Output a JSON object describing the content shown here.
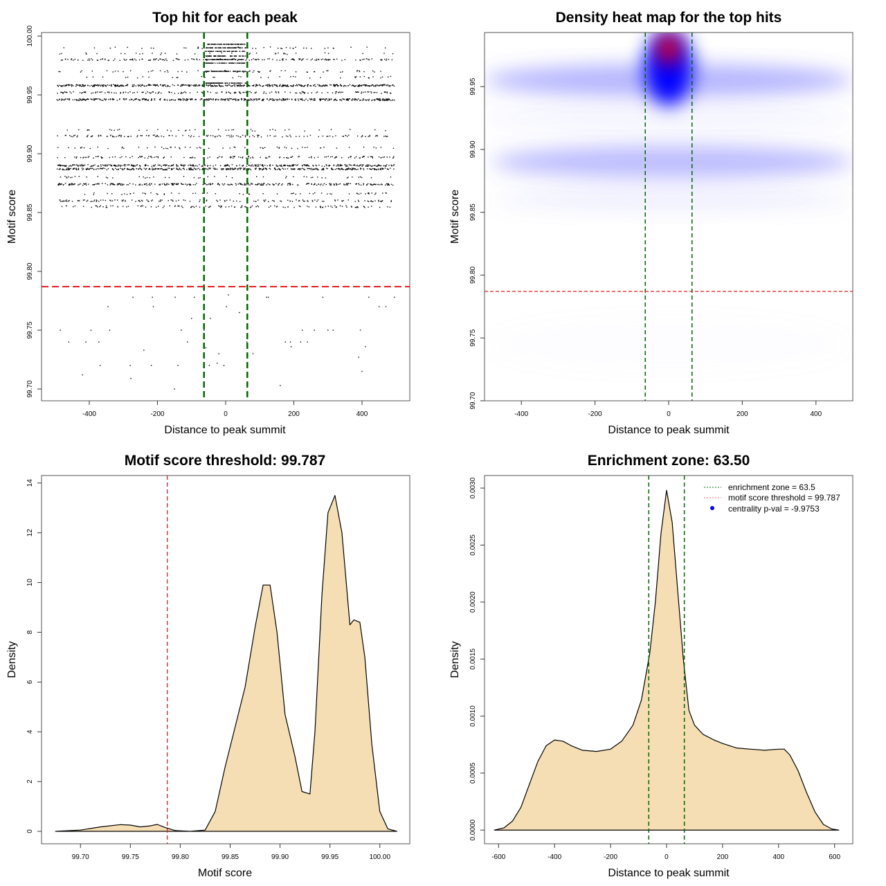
{
  "chart_data": [
    {
      "type": "scatter",
      "title": "Top hit for each peak",
      "xlabel": "Distance to peak summit",
      "ylabel": "Motif score",
      "xlim": [
        -540,
        540
      ],
      "ylim": [
        99.69,
        100.003
      ],
      "xticks": [
        -400,
        -200,
        0,
        200,
        400
      ],
      "yticks": [
        99.7,
        99.75,
        99.8,
        99.85,
        99.9,
        99.95,
        100.0
      ],
      "ytick_labels": [
        "99.70",
        "99.75",
        "99.80",
        "99.85",
        "99.90",
        "99.95",
        "100.00"
      ],
      "threshold_score": 99.787,
      "enrichment_zone": [
        -63.5,
        63.5
      ],
      "score_bands": [
        {
          "score": 99.99,
          "count": 40
        },
        {
          "score": 99.985,
          "count": 35
        },
        {
          "score": 99.98,
          "count": 160
        },
        {
          "score": 99.97,
          "count": 60
        },
        {
          "score": 99.965,
          "count": 40
        },
        {
          "score": 99.958,
          "count": 500
        },
        {
          "score": 99.952,
          "count": 170
        },
        {
          "score": 99.946,
          "count": 420
        },
        {
          "score": 99.92,
          "count": 40
        },
        {
          "score": 99.915,
          "count": 140
        },
        {
          "score": 99.905,
          "count": 60
        },
        {
          "score": 99.897,
          "count": 140
        },
        {
          "score": 99.89,
          "count": 330
        },
        {
          "score": 99.887,
          "count": 380
        },
        {
          "score": 99.88,
          "count": 50
        },
        {
          "score": 99.874,
          "count": 300
        },
        {
          "score": 99.866,
          "count": 60
        },
        {
          "score": 99.86,
          "count": 140
        },
        {
          "score": 99.855,
          "count": 120
        }
      ],
      "central_cluster": {
        "x_range": [
          -60,
          60
        ],
        "scores": [
          99.993,
          99.99,
          99.987,
          99.983,
          99.98,
          99.977,
          99.97,
          99.96
        ],
        "count_per_score": 60
      },
      "low_points": [
        [
          -485,
          99.75
        ],
        [
          -460,
          99.74
        ],
        [
          -420,
          99.712
        ],
        [
          -410,
          99.74
        ],
        [
          -395,
          99.75
        ],
        [
          -372,
          99.74
        ],
        [
          -368,
          99.72
        ],
        [
          -345,
          99.77
        ],
        [
          -340,
          99.75
        ],
        [
          -280,
          99.72
        ],
        [
          -278,
          99.709
        ],
        [
          -272,
          99.778
        ],
        [
          -240,
          99.733
        ],
        [
          -215,
          99.778
        ],
        [
          -218,
          99.72
        ],
        [
          -212,
          99.77
        ],
        [
          -150,
          99.7
        ],
        [
          -148,
          99.778
        ],
        [
          -140,
          99.72
        ],
        [
          -130,
          99.75
        ],
        [
          -112,
          99.74
        ],
        [
          -100,
          99.76
        ],
        [
          -92,
          99.778
        ],
        [
          -63,
          99.75
        ],
        [
          -58,
          99.735
        ],
        [
          -48,
          99.72
        ],
        [
          -45,
          99.76
        ],
        [
          -25,
          99.722
        ],
        [
          -20,
          99.73
        ],
        [
          -5,
          99.72
        ],
        [
          2,
          99.77
        ],
        [
          8,
          99.78
        ],
        [
          40,
          99.765
        ],
        [
          62,
          99.74
        ],
        [
          80,
          99.73
        ],
        [
          120,
          99.778
        ],
        [
          125,
          99.778
        ],
        [
          160,
          99.703
        ],
        [
          175,
          99.74
        ],
        [
          190,
          99.74
        ],
        [
          192,
          99.736
        ],
        [
          220,
          99.74
        ],
        [
          225,
          99.75
        ],
        [
          240,
          99.74
        ],
        [
          260,
          99.75
        ],
        [
          285,
          99.778
        ],
        [
          300,
          99.75
        ],
        [
          315,
          99.75
        ],
        [
          390,
          99.727
        ],
        [
          395,
          99.75
        ],
        [
          400,
          99.715
        ],
        [
          410,
          99.736
        ],
        [
          420,
          99.778
        ],
        [
          450,
          99.77
        ],
        [
          470,
          99.77
        ],
        [
          495,
          99.778
        ]
      ]
    },
    {
      "type": "heatmap",
      "title": "Density heat map for the top hits",
      "xlabel": "Distance to peak summit",
      "ylabel": "Motif score",
      "xlim": [
        -500,
        500
      ],
      "ylim": [
        99.7,
        99.993
      ],
      "xticks": [
        -400,
        -200,
        0,
        200,
        400
      ],
      "yticks": [
        99.7,
        99.75,
        99.8,
        99.85,
        99.9,
        99.95
      ],
      "ytick_labels": [
        "99.70",
        "99.75",
        "99.80",
        "99.85",
        "99.90",
        "99.95"
      ],
      "threshold_score": 99.787,
      "enrichment_zone": [
        -63.5,
        63.5
      ],
      "colors": [
        "#ffffff",
        "#0000ff",
        "#ff0000"
      ],
      "density_hotspots": [
        {
          "x": [
            -500,
            500
          ],
          "score": 99.955,
          "spread": 0.013,
          "intensity": 0.45,
          "color": "#5a5aff"
        },
        {
          "x": [
            -480,
            500
          ],
          "score": 99.89,
          "spread": 0.013,
          "intensity": 0.4,
          "color": "#5a5aff"
        },
        {
          "x": [
            -470,
            500
          ],
          "score": 99.86,
          "spread": 0.01,
          "intensity": 0.12,
          "color": "#8080ff"
        },
        {
          "x": [
            -500,
            500
          ],
          "score": 99.925,
          "spread": 0.012,
          "intensity": 0.08,
          "color": "#8080ff"
        },
        {
          "x": [
            -65,
            65
          ],
          "score": 99.965,
          "spread": 0.03,
          "intensity": 1.0,
          "color": "#0000ff"
        },
        {
          "x": [
            -28,
            28
          ],
          "score": 99.98,
          "spread": 0.012,
          "intensity": 1.0,
          "color": "#ff0000"
        },
        {
          "x": [
            -480,
            480
          ],
          "score": 99.745,
          "spread": 0.02,
          "intensity": 0.03,
          "color": "#b0b0ff"
        }
      ]
    },
    {
      "type": "area",
      "title": "Motif score threshold: 99.787",
      "xlabel": "Motif score",
      "ylabel": "Density",
      "xlim": [
        99.661,
        100.03
      ],
      "ylim": [
        -0.5,
        14.3
      ],
      "xticks": [
        99.7,
        99.75,
        99.8,
        99.85,
        99.9,
        99.95,
        100.0
      ],
      "xtick_labels": [
        "99.70",
        "99.75",
        "99.80",
        "99.85",
        "99.90",
        "99.95",
        "100.00"
      ],
      "yticks": [
        0,
        2,
        4,
        6,
        8,
        10,
        12,
        14
      ],
      "threshold_score": 99.787,
      "fill": "#f5deb3",
      "x": [
        99.675,
        99.7,
        99.72,
        99.74,
        99.75,
        99.76,
        99.77,
        99.777,
        99.785,
        99.795,
        99.81,
        99.825,
        99.835,
        99.845,
        99.855,
        99.865,
        99.875,
        99.883,
        99.89,
        99.897,
        99.905,
        99.915,
        99.922,
        99.93,
        99.935,
        99.942,
        99.948,
        99.955,
        99.962,
        99.97,
        99.974,
        99.98,
        99.985,
        99.992,
        100.0,
        100.008,
        100.017
      ],
      "y": [
        0,
        0.05,
        0.18,
        0.27,
        0.25,
        0.18,
        0.22,
        0.28,
        0.15,
        0.03,
        0,
        0.05,
        0.8,
        2.6,
        4.2,
        5.8,
        8.2,
        9.9,
        9.9,
        8.0,
        4.7,
        3.0,
        1.6,
        1.5,
        4.0,
        9.5,
        12.8,
        13.5,
        12.0,
        8.3,
        8.5,
        8.4,
        7.0,
        3.5,
        0.8,
        0.1,
        0
      ]
    },
    {
      "type": "area",
      "title": "Enrichment zone: 63.50",
      "xlabel": "Distance to peak summit",
      "ylabel": "Density",
      "xlim": [
        -650,
        665
      ],
      "ylim": [
        -0.00012,
        0.00311
      ],
      "xticks": [
        -600,
        -400,
        -200,
        0,
        200,
        400,
        600
      ],
      "yticks": [
        0,
        0.0005,
        0.001,
        0.0015,
        0.002,
        0.0025,
        0.003
      ],
      "ytick_labels": [
        "0.0000",
        "0.0005",
        "0.0010",
        "0.0015",
        "0.0020",
        "0.0025",
        "0.0030"
      ],
      "enrichment_zone": [
        -63.5,
        63.5
      ],
      "fill": "#f5deb3",
      "x": [
        -615,
        -580,
        -550,
        -520,
        -490,
        -460,
        -430,
        -400,
        -370,
        -340,
        -300,
        -250,
        -200,
        -160,
        -120,
        -90,
        -60,
        -40,
        -20,
        0,
        20,
        40,
        60,
        80,
        100,
        130,
        170,
        200,
        250,
        300,
        350,
        400,
        420,
        440,
        470,
        500,
        530,
        560,
        590,
        615
      ],
      "y": [
        0,
        2e-05,
        8e-05,
        0.0002,
        0.0004,
        0.0006,
        0.00074,
        0.00079,
        0.00078,
        0.00074,
        0.0007,
        0.00069,
        0.00071,
        0.00078,
        0.00092,
        0.00114,
        0.00155,
        0.002,
        0.0026,
        0.00298,
        0.0027,
        0.0021,
        0.0015,
        0.00105,
        0.00092,
        0.00084,
        0.00079,
        0.00076,
        0.00072,
        0.00071,
        0.0007,
        0.00071,
        0.00071,
        0.00066,
        0.00052,
        0.00033,
        0.00016,
        5e-05,
        1e-05,
        0
      ]
    }
  ],
  "legend": {
    "items": [
      {
        "label": "enrichment zone = 63.5",
        "color": "#006400",
        "symbol": "dotted-line"
      },
      {
        "label": "motif score threshold = 99.787",
        "color": "#ff0000",
        "symbol": "dotted-line"
      },
      {
        "label": "centrality p-val = -9.9753",
        "color": "#0000ff",
        "symbol": "dot"
      }
    ]
  },
  "colors": {
    "threshold": "#e41a1c",
    "zone": "#006400",
    "fill": "#f5deb3"
  }
}
